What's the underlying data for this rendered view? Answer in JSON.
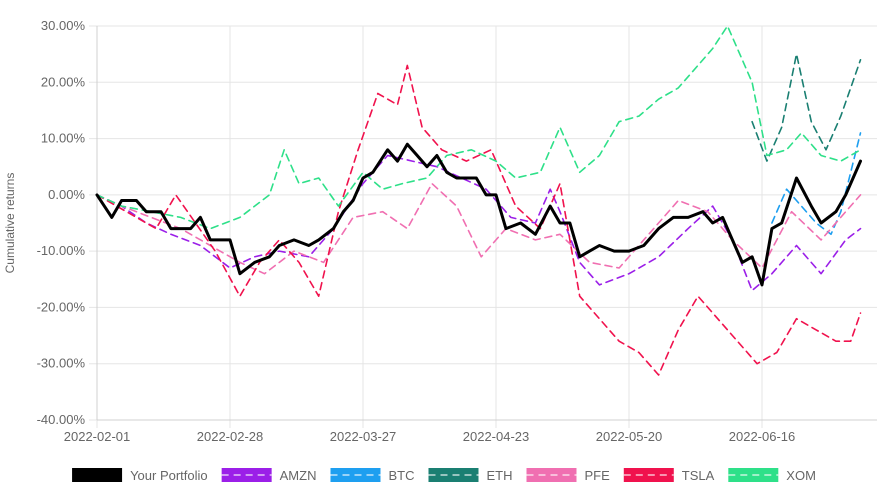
{
  "chart_data": {
    "type": "line",
    "ylabel": "Cumulative returns",
    "xlabel": "",
    "ylim": [
      -40,
      30
    ],
    "yticks": [
      "30.00%",
      "20.00%",
      "10.00%",
      "0.00%",
      "-10.00%",
      "-20.00%",
      "-30.00%",
      "-40.00%"
    ],
    "xticks": [
      "2022-02-01",
      "2022-02-28",
      "2022-03-27",
      "2022-04-23",
      "2022-05-20",
      "2022-06-16"
    ],
    "grid": true,
    "legend_position": "bottom",
    "series": [
      {
        "name": "Your Portfolio",
        "color": "#000000",
        "dashed": false,
        "points": [
          [
            "2022-02-01",
            0
          ],
          [
            "2022-02-04",
            -4
          ],
          [
            "2022-02-06",
            -1
          ],
          [
            "2022-02-09",
            -1
          ],
          [
            "2022-02-11",
            -3
          ],
          [
            "2022-02-14",
            -3
          ],
          [
            "2022-02-16",
            -6
          ],
          [
            "2022-02-20",
            -6
          ],
          [
            "2022-02-22",
            -4
          ],
          [
            "2022-02-24",
            -8
          ],
          [
            "2022-02-28",
            -8
          ],
          [
            "2022-03-02",
            -14
          ],
          [
            "2022-03-05",
            -12
          ],
          [
            "2022-03-08",
            -11
          ],
          [
            "2022-03-10",
            -9
          ],
          [
            "2022-03-13",
            -8
          ],
          [
            "2022-03-16",
            -9
          ],
          [
            "2022-03-18",
            -8
          ],
          [
            "2022-03-21",
            -6
          ],
          [
            "2022-03-23",
            -3
          ],
          [
            "2022-03-25",
            -1
          ],
          [
            "2022-03-27",
            3
          ],
          [
            "2022-03-29",
            4
          ],
          [
            "2022-04-01",
            8
          ],
          [
            "2022-04-03",
            6
          ],
          [
            "2022-04-05",
            9
          ],
          [
            "2022-04-07",
            7
          ],
          [
            "2022-04-09",
            5
          ],
          [
            "2022-04-11",
            7
          ],
          [
            "2022-04-13",
            4
          ],
          [
            "2022-04-15",
            3
          ],
          [
            "2022-04-19",
            3
          ],
          [
            "2022-04-21",
            0
          ],
          [
            "2022-04-23",
            0
          ],
          [
            "2022-04-25",
            -6
          ],
          [
            "2022-04-28",
            -5
          ],
          [
            "2022-05-01",
            -7
          ],
          [
            "2022-05-04",
            -2
          ],
          [
            "2022-05-06",
            -5
          ],
          [
            "2022-05-08",
            -5
          ],
          [
            "2022-05-10",
            -11
          ],
          [
            "2022-05-12",
            -10
          ],
          [
            "2022-05-14",
            -9
          ],
          [
            "2022-05-17",
            -10
          ],
          [
            "2022-05-20",
            -10
          ],
          [
            "2022-05-23",
            -9
          ],
          [
            "2022-05-26",
            -6
          ],
          [
            "2022-05-29",
            -4
          ],
          [
            "2022-06-01",
            -4
          ],
          [
            "2022-06-04",
            -3
          ],
          [
            "2022-06-06",
            -5
          ],
          [
            "2022-06-08",
            -4
          ],
          [
            "2022-06-10",
            -8
          ],
          [
            "2022-06-12",
            -12
          ],
          [
            "2022-06-14",
            -11
          ],
          [
            "2022-06-16",
            -16
          ],
          [
            "2022-06-18",
            -6
          ],
          [
            "2022-06-20",
            -5
          ],
          [
            "2022-06-23",
            3
          ],
          [
            "2022-06-26",
            -2
          ],
          [
            "2022-06-28",
            -5
          ],
          [
            "2022-07-01",
            -3
          ],
          [
            "2022-07-03",
            0
          ],
          [
            "2022-07-06",
            6
          ]
        ]
      },
      {
        "name": "AMZN",
        "color": "#9b1fe8",
        "dashed": true,
        "points": [
          [
            "2022-02-01",
            0
          ],
          [
            "2022-02-06",
            -2
          ],
          [
            "2022-02-11",
            -5
          ],
          [
            "2022-02-16",
            -7
          ],
          [
            "2022-02-22",
            -9
          ],
          [
            "2022-02-28",
            -13
          ],
          [
            "2022-03-05",
            -11
          ],
          [
            "2022-03-10",
            -10
          ],
          [
            "2022-03-16",
            -11
          ],
          [
            "2022-03-21",
            -6
          ],
          [
            "2022-03-27",
            2
          ],
          [
            "2022-04-01",
            7
          ],
          [
            "2022-04-06",
            6
          ],
          [
            "2022-04-11",
            5
          ],
          [
            "2022-04-16",
            3
          ],
          [
            "2022-04-21",
            1
          ],
          [
            "2022-04-26",
            -4
          ],
          [
            "2022-05-01",
            -5
          ],
          [
            "2022-05-04",
            1
          ],
          [
            "2022-05-06",
            -3
          ],
          [
            "2022-05-10",
            -12
          ],
          [
            "2022-05-14",
            -16
          ],
          [
            "2022-05-20",
            -14
          ],
          [
            "2022-05-26",
            -11
          ],
          [
            "2022-06-01",
            -6
          ],
          [
            "2022-06-06",
            -2
          ],
          [
            "2022-06-10",
            -8
          ],
          [
            "2022-06-14",
            -17
          ],
          [
            "2022-06-18",
            -14
          ],
          [
            "2022-06-23",
            -9
          ],
          [
            "2022-06-28",
            -14
          ],
          [
            "2022-07-03",
            -8
          ],
          [
            "2022-07-06",
            -6
          ]
        ]
      },
      {
        "name": "BTC",
        "color": "#1e9ff0",
        "dashed": true,
        "points": [
          [
            "2022-06-18",
            -5
          ],
          [
            "2022-06-21",
            1
          ],
          [
            "2022-06-24",
            -2
          ],
          [
            "2022-06-27",
            -5
          ],
          [
            "2022-06-30",
            -7
          ],
          [
            "2022-07-02",
            -3
          ],
          [
            "2022-07-04",
            4
          ],
          [
            "2022-07-06",
            11
          ]
        ]
      },
      {
        "name": "ETH",
        "color": "#1a7f72",
        "dashed": true,
        "points": [
          [
            "2022-06-14",
            13
          ],
          [
            "2022-06-17",
            6
          ],
          [
            "2022-06-20",
            12
          ],
          [
            "2022-06-23",
            25
          ],
          [
            "2022-06-26",
            13
          ],
          [
            "2022-06-29",
            8
          ],
          [
            "2022-07-02",
            14
          ],
          [
            "2022-07-04",
            19
          ],
          [
            "2022-07-06",
            24
          ]
        ]
      },
      {
        "name": "PFE",
        "color": "#f06fb1",
        "dashed": true,
        "points": [
          [
            "2022-02-01",
            0
          ],
          [
            "2022-02-06",
            -2
          ],
          [
            "2022-02-12",
            -4
          ],
          [
            "2022-02-18",
            -6
          ],
          [
            "2022-02-24",
            -9
          ],
          [
            "2022-03-02",
            -12
          ],
          [
            "2022-03-07",
            -14
          ],
          [
            "2022-03-13",
            -10
          ],
          [
            "2022-03-19",
            -12
          ],
          [
            "2022-03-25",
            -4
          ],
          [
            "2022-03-31",
            -3
          ],
          [
            "2022-04-05",
            -6
          ],
          [
            "2022-04-10",
            2
          ],
          [
            "2022-04-15",
            -2
          ],
          [
            "2022-04-20",
            -11
          ],
          [
            "2022-04-25",
            -6
          ],
          [
            "2022-05-01",
            -8
          ],
          [
            "2022-05-06",
            -7
          ],
          [
            "2022-05-12",
            -12
          ],
          [
            "2022-05-18",
            -13
          ],
          [
            "2022-05-24",
            -7
          ],
          [
            "2022-05-30",
            -1
          ],
          [
            "2022-06-05",
            -3
          ],
          [
            "2022-06-10",
            -8
          ],
          [
            "2022-06-16",
            -13
          ],
          [
            "2022-06-22",
            -3
          ],
          [
            "2022-06-28",
            -8
          ],
          [
            "2022-07-03",
            -3
          ],
          [
            "2022-07-06",
            0
          ]
        ]
      },
      {
        "name": "TSLA",
        "color": "#f0124d",
        "dashed": true,
        "points": [
          [
            "2022-02-01",
            0
          ],
          [
            "2022-02-05",
            -2
          ],
          [
            "2022-02-09",
            -4
          ],
          [
            "2022-02-13",
            -6
          ],
          [
            "2022-02-17",
            0
          ],
          [
            "2022-02-21",
            -5
          ],
          [
            "2022-02-25",
            -10
          ],
          [
            "2022-03-02",
            -18
          ],
          [
            "2022-03-06",
            -12
          ],
          [
            "2022-03-10",
            -8
          ],
          [
            "2022-03-14",
            -12
          ],
          [
            "2022-03-18",
            -18
          ],
          [
            "2022-03-22",
            -3
          ],
          [
            "2022-03-26",
            8
          ],
          [
            "2022-03-30",
            18
          ],
          [
            "2022-04-03",
            16
          ],
          [
            "2022-04-05",
            23
          ],
          [
            "2022-04-08",
            12
          ],
          [
            "2022-04-12",
            8
          ],
          [
            "2022-04-17",
            6
          ],
          [
            "2022-04-22",
            8
          ],
          [
            "2022-04-27",
            -2
          ],
          [
            "2022-05-02",
            -6
          ],
          [
            "2022-05-06",
            2
          ],
          [
            "2022-05-10",
            -18
          ],
          [
            "2022-05-14",
            -22
          ],
          [
            "2022-05-18",
            -26
          ],
          [
            "2022-05-22",
            -28
          ],
          [
            "2022-05-26",
            -32
          ],
          [
            "2022-05-30",
            -24
          ],
          [
            "2022-06-03",
            -18
          ],
          [
            "2022-06-07",
            -22
          ],
          [
            "2022-06-11",
            -26
          ],
          [
            "2022-06-15",
            -30
          ],
          [
            "2022-06-19",
            -28
          ],
          [
            "2022-06-23",
            -22
          ],
          [
            "2022-06-27",
            -24
          ],
          [
            "2022-07-01",
            -26
          ],
          [
            "2022-07-04",
            -26
          ],
          [
            "2022-07-06",
            -21
          ]
        ]
      },
      {
        "name": "XOM",
        "color": "#2ee089",
        "dashed": true,
        "points": [
          [
            "2022-02-01",
            0
          ],
          [
            "2022-02-06",
            -2
          ],
          [
            "2022-02-12",
            -3
          ],
          [
            "2022-02-18",
            -4
          ],
          [
            "2022-02-24",
            -6
          ],
          [
            "2022-03-02",
            -4
          ],
          [
            "2022-03-08",
            0
          ],
          [
            "2022-03-11",
            8
          ],
          [
            "2022-03-14",
            2
          ],
          [
            "2022-03-18",
            3
          ],
          [
            "2022-03-22",
            -2
          ],
          [
            "2022-03-27",
            4
          ],
          [
            "2022-03-31",
            1
          ],
          [
            "2022-04-04",
            2
          ],
          [
            "2022-04-09",
            3
          ],
          [
            "2022-04-13",
            7
          ],
          [
            "2022-04-18",
            8
          ],
          [
            "2022-04-23",
            6
          ],
          [
            "2022-04-27",
            3
          ],
          [
            "2022-05-02",
            4
          ],
          [
            "2022-05-06",
            12
          ],
          [
            "2022-05-10",
            4
          ],
          [
            "2022-05-14",
            7
          ],
          [
            "2022-05-18",
            13
          ],
          [
            "2022-05-22",
            14
          ],
          [
            "2022-05-26",
            17
          ],
          [
            "2022-05-30",
            19
          ],
          [
            "2022-06-03",
            23
          ],
          [
            "2022-06-06",
            26
          ],
          [
            "2022-06-09",
            30
          ],
          [
            "2022-06-12",
            24
          ],
          [
            "2022-06-14",
            20
          ],
          [
            "2022-06-17",
            7
          ],
          [
            "2022-06-21",
            8
          ],
          [
            "2022-06-24",
            11
          ],
          [
            "2022-06-28",
            7
          ],
          [
            "2022-07-02",
            6
          ],
          [
            "2022-07-06",
            8
          ]
        ]
      }
    ]
  }
}
